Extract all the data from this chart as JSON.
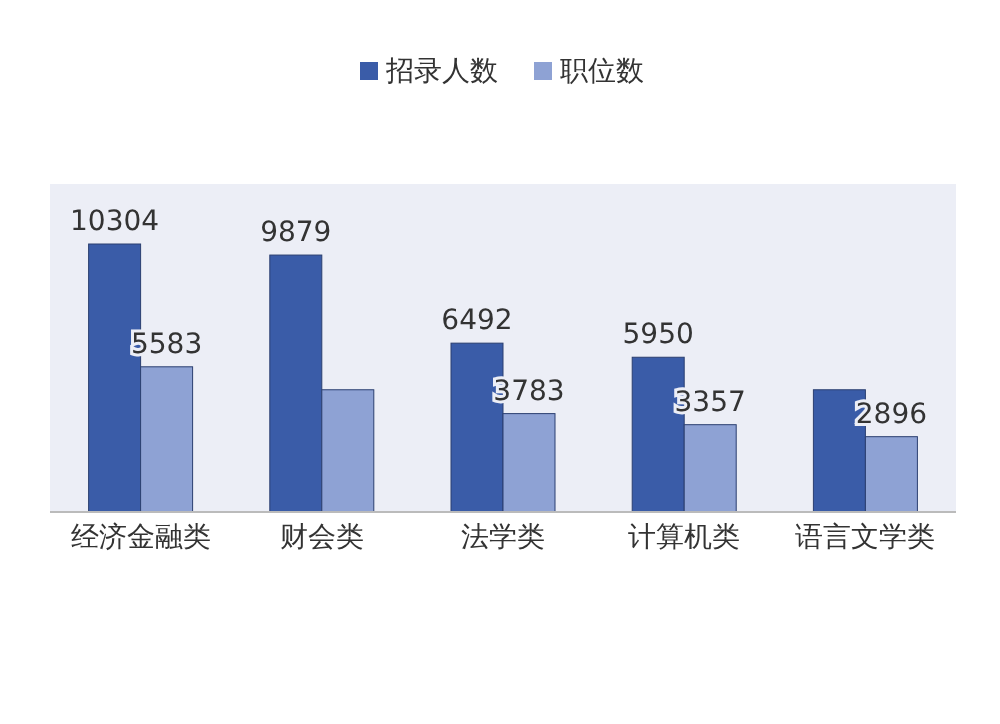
{
  "chart_data": {
    "type": "bar",
    "categories": [
      "经济金融类",
      "财会类",
      "法学类",
      "计算机类",
      "语言文学类"
    ],
    "series": [
      {
        "name": "招录人数",
        "color": "#3a5ca8",
        "values": [
          10304,
          9879,
          6492,
          5950,
          4700
        ],
        "value_labels": [
          "10304",
          "9879",
          "6492",
          "5950",
          null
        ]
      },
      {
        "name": "职位数",
        "color": "#8ea2d4",
        "values": [
          5583,
          4700,
          3783,
          3357,
          2896
        ],
        "value_labels": [
          "5583",
          null,
          "3783",
          "3357",
          "2896"
        ]
      }
    ],
    "legend": "top"
  }
}
